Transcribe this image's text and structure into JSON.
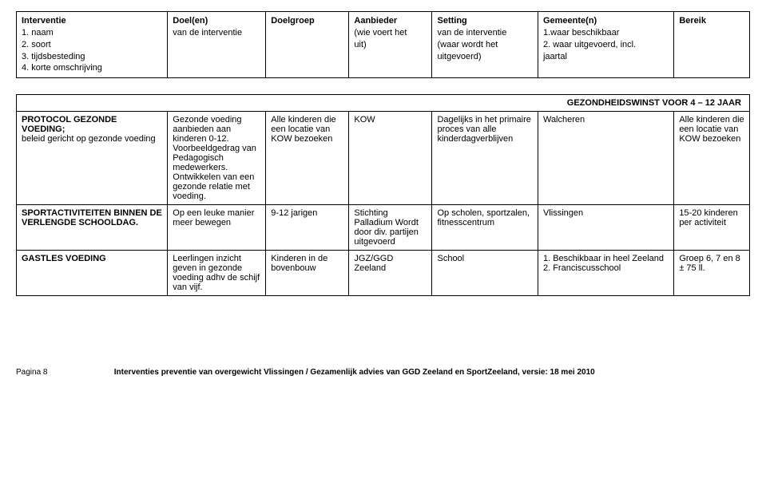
{
  "header": {
    "cols": [
      [
        "Interventie",
        "1. naam",
        "2. soort",
        "3. tijdsbesteding",
        "4. korte omschrijving"
      ],
      [
        "Doel(en)",
        "van de interventie"
      ],
      [
        "Doelgroep"
      ],
      [
        "Aanbieder",
        "(wie voert het",
        "uit)"
      ],
      [
        "Setting",
        "van de interventie",
        "(waar wordt het",
        "uitgevoerd)"
      ],
      [
        "Gemeente(n)",
        "1.waar beschikbaar",
        "2. waar uitgevoerd, incl.",
        "jaartal"
      ],
      [
        "Bereik"
      ]
    ]
  },
  "section_title": "GEZONDHEIDSWINST VOOR 4 – 12 JAAR",
  "rows": [
    {
      "name": "PROTOCOL GEZONDE VOEDING;",
      "name_rest": "beleid gericht op gezonde voeding",
      "doel": "Gezonde voeding aanbieden aan kinderen 0-12. Voorbeeldgedrag van Pedagogisch medewerkers. Ontwikkelen van een gezonde relatie met voeding.",
      "doelgroep": "Alle kinderen die een locatie van KOW bezoeken",
      "aanbieder": "KOW",
      "setting": "Dagelijks in het primaire proces van alle kinderdagverblijven",
      "gemeente": "Walcheren",
      "bereik": "Alle kinderen die een locatie van KOW bezoeken"
    },
    {
      "name": "SPORTACTIVITEITEN BINNEN DE VERLENGDE SCHOOLDAG.",
      "name_rest": "",
      "doel": "Op een leuke manier meer bewegen",
      "doelgroep": "9-12 jarigen",
      "aanbieder": "Stichting Palladium Wordt door div. partijen uitgevoerd",
      "setting": "Op scholen, sportzalen, fitnesscentrum",
      "gemeente": "Vlissingen",
      "bereik": "15-20 kinderen per activiteit"
    },
    {
      "name": "GASTLES VOEDING",
      "name_rest": "",
      "doel": "Leerlingen inzicht geven in gezonde voeding adhv de schijf van vijf.",
      "doelgroep": "Kinderen in de bovenbouw",
      "aanbieder": "JGZ/GGD Zeeland",
      "setting": "School",
      "gemeente": "1. Beschikbaar in heel Zeeland\n2. Franciscusschool",
      "bereik": "Groep 6, 7 en 8\n± 75 ll."
    }
  ],
  "footer": {
    "page": "Pagina 8",
    "text": "Interventies preventie van overgewicht Vlissingen / Gezamenlijk advies van GGD Zeeland en SportZeeland, versie: 18 mei 2010"
  }
}
